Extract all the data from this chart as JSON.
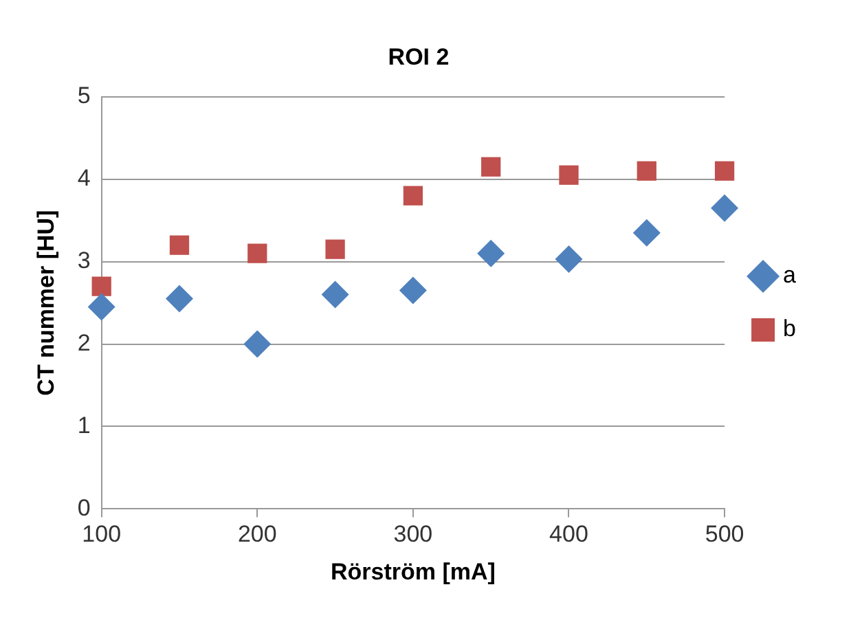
{
  "chart_data": {
    "type": "scatter",
    "title": "ROI 2",
    "xlabel": "Rörström [mA]",
    "ylabel": "CT nummer [HU]",
    "x": [
      100,
      150,
      200,
      250,
      300,
      350,
      400,
      450,
      500
    ],
    "series": [
      {
        "name": "a",
        "color": "#4f81bd",
        "marker": "diamond",
        "values": [
          2.45,
          2.55,
          2.0,
          2.6,
          2.65,
          3.1,
          3.03,
          3.35,
          3.65
        ]
      },
      {
        "name": "b",
        "color": "#c0504d",
        "marker": "square",
        "values": [
          2.7,
          3.2,
          3.1,
          3.15,
          3.8,
          4.15,
          4.05,
          4.1,
          4.1
        ]
      }
    ],
    "xlim": [
      100,
      500
    ],
    "xticks": [
      100,
      200,
      300,
      400,
      500
    ],
    "ylim": [
      0,
      5
    ],
    "yticks": [
      0,
      1,
      2,
      3,
      4,
      5
    ],
    "grid": "y",
    "legend": "right"
  }
}
